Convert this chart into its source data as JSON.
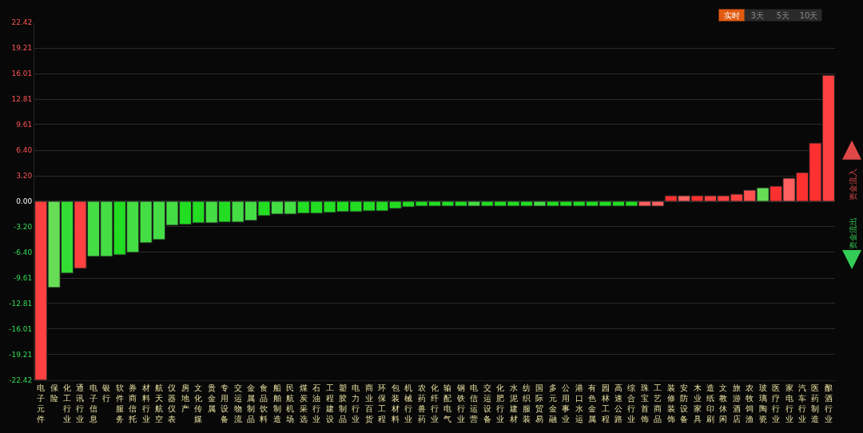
{
  "chart_data": {
    "type": "bar",
    "categories": [
      "电子元件",
      "保险",
      "化工行业",
      "通讯行业",
      "电子信息",
      "银行",
      "软件服务",
      "券商信托",
      "材料行业",
      "航天航空",
      "仪器仪表",
      "房地产",
      "文化传媒",
      "贵金属",
      "专用设备",
      "交运物流",
      "金属制品",
      "食品饮料",
      "船舶制造",
      "民航机场",
      "煤炭采选",
      "石油行业",
      "工程建设",
      "塑胶制品",
      "电力行业",
      "商业百货",
      "环保工程",
      "包装材料",
      "机械行业",
      "农药兽药",
      "化纤行业",
      "输配电气",
      "钢铁行业",
      "电信运营",
      "交运设备",
      "化肥行业",
      "水泥建材",
      "纺织服装",
      "国际贸易",
      "多元金融",
      "公用事业",
      "港口水运",
      "有色金属",
      "园林工程",
      "高速公路",
      "综合行业",
      "珠宝首饰",
      "工艺商品",
      "装修装饰",
      "安防设备",
      "木业家具",
      "造纸印刷",
      "文教休闲",
      "旅游酒店",
      "农牧饲渔",
      "玻璃陶瓷",
      "医疗行业",
      "家电行业",
      "汽车行业",
      "医药制造",
      "酿酒行业"
    ],
    "values": [
      -22.4,
      -10.8,
      -9.0,
      -8.4,
      -6.9,
      -6.9,
      -6.7,
      -6.4,
      -5.2,
      -4.8,
      -3.0,
      -2.9,
      -2.7,
      -2.7,
      -2.6,
      -2.6,
      -2.4,
      -1.8,
      -1.6,
      -1.6,
      -1.5,
      -1.5,
      -1.4,
      -1.3,
      -1.3,
      -1.2,
      -1.2,
      -0.9,
      -0.7,
      -0.6,
      -0.6,
      -0.6,
      -0.6,
      -0.6,
      -0.6,
      -0.6,
      -0.6,
      -0.6,
      -0.6,
      -0.6,
      -0.6,
      -0.6,
      -0.6,
      -0.6,
      -0.6,
      -0.6,
      -0.6,
      -0.6,
      0.7,
      0.7,
      0.7,
      0.7,
      0.7,
      0.9,
      1.4,
      1.7,
      1.9,
      2.9,
      3.6,
      7.3,
      15.8
    ],
    "colors": [
      "#ff4040",
      "#66dd55",
      "#33dd33",
      "#ff4040",
      "#44dd44",
      "#44dd44",
      "#22dd22",
      "#44dd44",
      "#44dd44",
      "#44dd44",
      "#44dd44",
      "#22dd22",
      "#22dd22",
      "#44dd44",
      "#22dd22",
      "#44dd44",
      "#44dd44",
      "#22dd22",
      "#44dd44",
      "#44dd44",
      "#22dd22",
      "#22dd22",
      "#22dd22",
      "#22dd22",
      "#22dd22",
      "#22dd22",
      "#22dd22",
      "#22dd22",
      "#22dd22",
      "#22dd22",
      "#22dd22",
      "#22dd22",
      "#22dd22",
      "#44dd44",
      "#22dd22",
      "#22dd22",
      "#22dd22",
      "#22dd22",
      "#44dd44",
      "#22dd22",
      "#22dd22",
      "#22dd22",
      "#22dd22",
      "#22dd22",
      "#22dd22",
      "#22dd22",
      "#ff6060",
      "#ff6060",
      "#ff3030",
      "#ff6060",
      "#ff3030",
      "#ff4040",
      "#ff4040",
      "#ff4040",
      "#ff5050",
      "#66dd55",
      "#ff3030",
      "#ff6060",
      "#ff3030",
      "#ff3030",
      "#ff4040"
    ],
    "ylim": [
      -22.42,
      22.42
    ],
    "yticks": [
      {
        "value": 22.42,
        "label": "22.42"
      },
      {
        "value": 19.21,
        "label": "19.21"
      },
      {
        "value": 16.01,
        "label": "16.01"
      },
      {
        "value": 12.81,
        "label": "12.81"
      },
      {
        "value": 9.61,
        "label": "9.61"
      },
      {
        "value": 6.4,
        "label": "6.40"
      },
      {
        "value": 3.2,
        "label": "3.20"
      },
      {
        "value": 0,
        "label": "0.00"
      },
      {
        "value": -3.2,
        "label": "-3.20"
      },
      {
        "value": -6.4,
        "label": "-6.40"
      },
      {
        "value": -9.61,
        "label": "-9.61"
      },
      {
        "value": -12.81,
        "label": "-12.81"
      },
      {
        "value": -16.01,
        "label": "-16.01"
      },
      {
        "value": -19.21,
        "label": "-19.21"
      },
      {
        "value": -22.42,
        "label": "-22.42"
      }
    ],
    "grid": "y",
    "annotations": [
      "实时",
      "3天",
      "5天",
      "10天",
      "资金流入",
      "资金流出"
    ]
  }
}
